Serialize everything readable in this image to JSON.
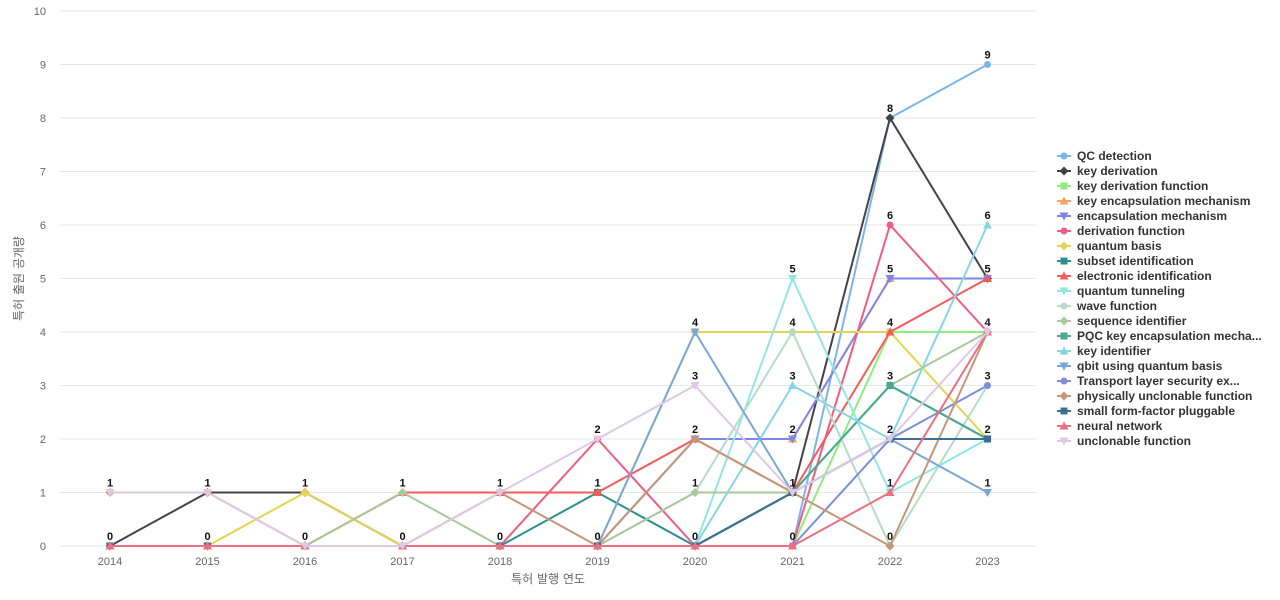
{
  "chart_data": {
    "type": "line",
    "title": "",
    "xlabel": "특허 발행 연도",
    "ylabel": "특허 출원 공개량",
    "x": [
      2014,
      2015,
      2016,
      2017,
      2018,
      2019,
      2020,
      2021,
      2022,
      2023
    ],
    "ylim": [
      0,
      10
    ],
    "yticks": [
      0,
      1,
      2,
      3,
      4,
      5,
      6,
      7,
      8,
      9,
      10
    ],
    "grid": true,
    "legend_position": "right",
    "data_labels": [
      {
        "x": 2014,
        "y": 1,
        "text": "1"
      },
      {
        "x": 2014,
        "y": 0,
        "text": "0"
      },
      {
        "x": 2015,
        "y": 1,
        "text": "1"
      },
      {
        "x": 2015,
        "y": 0,
        "text": "0"
      },
      {
        "x": 2016,
        "y": 1,
        "text": "1"
      },
      {
        "x": 2016,
        "y": 0,
        "text": "0"
      },
      {
        "x": 2017,
        "y": 1,
        "text": "1"
      },
      {
        "x": 2017,
        "y": 0,
        "text": "0"
      },
      {
        "x": 2018,
        "y": 1,
        "text": "1"
      },
      {
        "x": 2018,
        "y": 0,
        "text": "0"
      },
      {
        "x": 2019,
        "y": 2,
        "text": "2"
      },
      {
        "x": 2019,
        "y": 1,
        "text": "1"
      },
      {
        "x": 2019,
        "y": 0,
        "text": "0"
      },
      {
        "x": 2020,
        "y": 4,
        "text": "4"
      },
      {
        "x": 2020,
        "y": 3,
        "text": "3"
      },
      {
        "x": 2020,
        "y": 2,
        "text": "2"
      },
      {
        "x": 2020,
        "y": 1,
        "text": "1"
      },
      {
        "x": 2020,
        "y": 0,
        "text": "0"
      },
      {
        "x": 2021,
        "y": 5,
        "text": "5"
      },
      {
        "x": 2021,
        "y": 4,
        "text": "4"
      },
      {
        "x": 2021,
        "y": 3,
        "text": "3"
      },
      {
        "x": 2021,
        "y": 2,
        "text": "2"
      },
      {
        "x": 2021,
        "y": 1,
        "text": "1"
      },
      {
        "x": 2021,
        "y": 0,
        "text": "0"
      },
      {
        "x": 2022,
        "y": 8,
        "text": "8"
      },
      {
        "x": 2022,
        "y": 6,
        "text": "6"
      },
      {
        "x": 2022,
        "y": 5,
        "text": "5"
      },
      {
        "x": 2022,
        "y": 4,
        "text": "4"
      },
      {
        "x": 2022,
        "y": 3,
        "text": "3"
      },
      {
        "x": 2022,
        "y": 2,
        "text": "2"
      },
      {
        "x": 2022,
        "y": 1,
        "text": "1"
      },
      {
        "x": 2022,
        "y": 0,
        "text": "0"
      },
      {
        "x": 2023,
        "y": 9,
        "text": "9"
      },
      {
        "x": 2023,
        "y": 6,
        "text": "6"
      },
      {
        "x": 2023,
        "y": 5,
        "text": "5"
      },
      {
        "x": 2023,
        "y": 4,
        "text": "4"
      },
      {
        "x": 2023,
        "y": 3,
        "text": "3"
      },
      {
        "x": 2023,
        "y": 2,
        "text": "2"
      },
      {
        "x": 2023,
        "y": 1,
        "text": "1"
      }
    ],
    "series": [
      {
        "name": "QC detection",
        "color": "#7cb5ec",
        "marker": "circle",
        "values": [
          0,
          0,
          0,
          0,
          0,
          0,
          0,
          0,
          8,
          9
        ]
      },
      {
        "name": "key derivation",
        "color": "#434348",
        "marker": "diamond",
        "values": [
          0,
          1,
          1,
          0,
          0,
          0,
          0,
          1,
          8,
          5
        ]
      },
      {
        "name": "key derivation function",
        "color": "#90ed7d",
        "marker": "square",
        "values": [
          0,
          0,
          0,
          0,
          0,
          0,
          0,
          0,
          4,
          4
        ]
      },
      {
        "name": "key encapsulation mechanism",
        "color": "#f7a35c",
        "marker": "triangle",
        "values": [
          0,
          0,
          0,
          0,
          0,
          0,
          2,
          2,
          5,
          5
        ]
      },
      {
        "name": "encapsulation mechanism",
        "color": "#8085e9",
        "marker": "triangle-down",
        "values": [
          0,
          0,
          0,
          0,
          0,
          0,
          2,
          2,
          5,
          5
        ]
      },
      {
        "name": "derivation function",
        "color": "#f15c80",
        "marker": "circle",
        "values": [
          0,
          0,
          0,
          0,
          0,
          2,
          0,
          0,
          6,
          4
        ]
      },
      {
        "name": "quantum basis",
        "color": "#e4d354",
        "marker": "diamond",
        "values": [
          0,
          0,
          1,
          0,
          0,
          0,
          4,
          4,
          4,
          2
        ]
      },
      {
        "name": "subset identification",
        "color": "#2b908f",
        "marker": "square",
        "values": [
          0,
          0,
          0,
          0,
          0,
          1,
          0,
          1,
          3,
          2
        ]
      },
      {
        "name": "electronic identification",
        "color": "#f45b5b",
        "marker": "triangle",
        "values": [
          0,
          0,
          0,
          1,
          1,
          1,
          2,
          1,
          4,
          5
        ]
      },
      {
        "name": "quantum tunneling",
        "color": "#91e8e1",
        "marker": "triangle-down",
        "values": [
          0,
          0,
          0,
          0,
          0,
          0,
          0,
          5,
          1,
          2
        ]
      },
      {
        "name": "wave function",
        "color": "#b5dcc8",
        "marker": "circle",
        "values": [
          0,
          0,
          0,
          0,
          0,
          0,
          1,
          4,
          0,
          3
        ]
      },
      {
        "name": "sequence identifier",
        "color": "#a8c99b",
        "marker": "diamond",
        "values": [
          0,
          0,
          0,
          1,
          0,
          0,
          1,
          1,
          3,
          4
        ]
      },
      {
        "name": "PQC key encapsulation mecha...",
        "color": "#4aa88d",
        "marker": "square",
        "values": [
          0,
          0,
          0,
          0,
          0,
          0,
          0,
          1,
          3,
          2
        ]
      },
      {
        "name": "key identifier",
        "color": "#86d6e6",
        "marker": "triangle",
        "values": [
          0,
          0,
          0,
          0,
          0,
          0,
          0,
          3,
          2,
          6
        ]
      },
      {
        "name": "qbit using quantum basis",
        "color": "#7aa6d8",
        "marker": "triangle-down",
        "values": [
          0,
          0,
          0,
          0,
          0,
          0,
          4,
          1,
          2,
          1
        ]
      },
      {
        "name": "Transport layer security ex...",
        "color": "#7b8fd8",
        "marker": "circle",
        "values": [
          0,
          0,
          0,
          0,
          0,
          0,
          0,
          0,
          2,
          3
        ]
      },
      {
        "name": "physically unclonable function",
        "color": "#c4967a",
        "marker": "diamond",
        "values": [
          1,
          1,
          0,
          0,
          1,
          0,
          2,
          1,
          0,
          4
        ]
      },
      {
        "name": "small form-factor pluggable",
        "color": "#3f6f8f",
        "marker": "square",
        "values": [
          0,
          0,
          0,
          0,
          0,
          0,
          0,
          1,
          2,
          2
        ]
      },
      {
        "name": "neural network",
        "color": "#ec7080",
        "marker": "triangle",
        "values": [
          0,
          0,
          0,
          0,
          0,
          0,
          0,
          0,
          1,
          4
        ]
      },
      {
        "name": "unclonable function",
        "color": "#dfc8e6",
        "marker": "triangle-down",
        "values": [
          1,
          1,
          0,
          0,
          1,
          2,
          3,
          1,
          2,
          4
        ]
      }
    ]
  }
}
